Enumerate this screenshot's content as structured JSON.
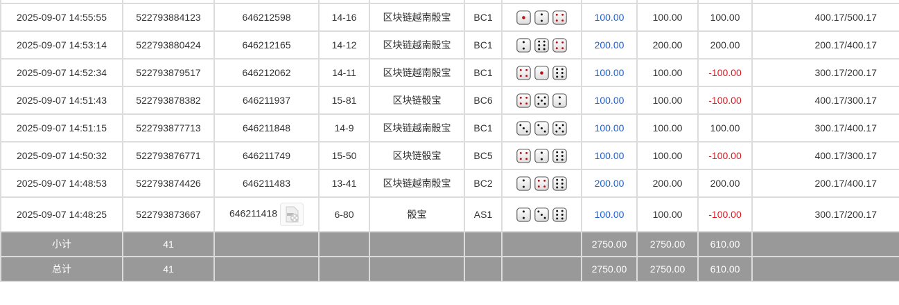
{
  "colors": {
    "win_blue": "#1a5ed6",
    "loss_red": "#e0141e",
    "summary_bg": "#999999"
  },
  "rows": [
    {
      "time": "2025-09-07 14:55:55",
      "order": "522793884123",
      "round": "646212598",
      "table": "14-16",
      "game": "区块链越南骰宝",
      "seat": "BC1",
      "dice": [
        1,
        2,
        4
      ],
      "bet": "100.00",
      "valid": "100.00",
      "result": "100.00",
      "balance": "400.17/500.17"
    },
    {
      "time": "2025-09-07 14:53:14",
      "order": "522793880424",
      "round": "646212165",
      "table": "14-12",
      "game": "区块链越南骰宝",
      "seat": "BC1",
      "dice": [
        2,
        6,
        4
      ],
      "bet": "200.00",
      "valid": "200.00",
      "result": "200.00",
      "balance": "200.17/400.17"
    },
    {
      "time": "2025-09-07 14:52:34",
      "order": "522793879517",
      "round": "646212062",
      "table": "14-11",
      "game": "区块链越南骰宝",
      "seat": "BC1",
      "dice": [
        4,
        1,
        6
      ],
      "bet": "100.00",
      "valid": "100.00",
      "result": "-100.00",
      "balance": "300.17/200.17"
    },
    {
      "time": "2025-09-07 14:51:43",
      "order": "522793878382",
      "round": "646211937",
      "table": "15-81",
      "game": "区块链骰宝",
      "seat": "BC6",
      "dice": [
        4,
        5,
        2
      ],
      "bet": "100.00",
      "valid": "100.00",
      "result": "-100.00",
      "balance": "400.17/300.17"
    },
    {
      "time": "2025-09-07 14:51:15",
      "order": "522793877713",
      "round": "646211848",
      "table": "14-9",
      "game": "区块链越南骰宝",
      "seat": "BC1",
      "dice": [
        3,
        3,
        5
      ],
      "bet": "100.00",
      "valid": "100.00",
      "result": "100.00",
      "balance": "300.17/400.17"
    },
    {
      "time": "2025-09-07 14:50:32",
      "order": "522793876771",
      "round": "646211749",
      "table": "15-50",
      "game": "区块链骰宝",
      "seat": "BC5",
      "dice": [
        4,
        2,
        6
      ],
      "bet": "100.00",
      "valid": "100.00",
      "result": "-100.00",
      "balance": "400.17/300.17"
    },
    {
      "time": "2025-09-07 14:48:53",
      "order": "522793874426",
      "round": "646211483",
      "table": "13-41",
      "game": "区块链越南骰宝",
      "seat": "BC2",
      "dice": [
        2,
        4,
        6
      ],
      "bet": "200.00",
      "valid": "200.00",
      "result": "200.00",
      "balance": "200.17/400.17"
    },
    {
      "time": "2025-09-07 14:48:25",
      "order": "522793873667",
      "round": "646211418",
      "table": "6-80",
      "game": "骰宝",
      "seat": "AS1",
      "dice": [
        2,
        3,
        6
      ],
      "bet": "100.00",
      "valid": "100.00",
      "result": "-100.00",
      "balance": "300.17/200.17",
      "has_video": true
    }
  ],
  "subtotal": {
    "label": "小计",
    "count": "41",
    "bet": "2750.00",
    "valid": "2750.00",
    "result": "610.00"
  },
  "total": {
    "label": "总计",
    "count": "41",
    "bet": "2750.00",
    "valid": "2750.00",
    "result": "610.00"
  }
}
